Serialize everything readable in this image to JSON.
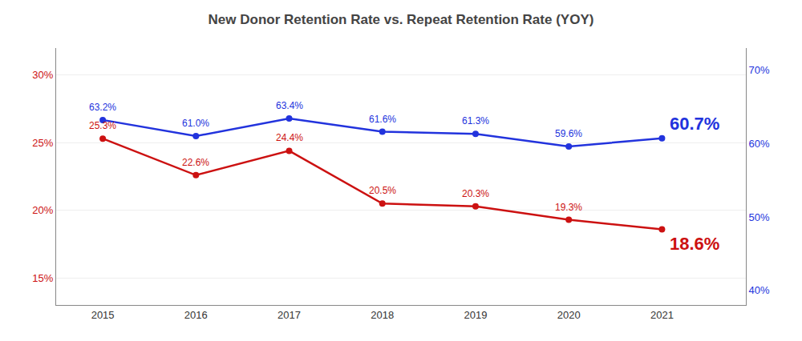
{
  "chart_data": {
    "type": "line",
    "title": "New Donor Retention Rate vs. Repeat Retention Rate (YOY)",
    "x": [
      2015,
      2016,
      2017,
      2018,
      2019,
      2020,
      2021
    ],
    "xlim": [
      2014.5,
      2021.9
    ],
    "xticks": [
      2015,
      2016,
      2017,
      2018,
      2019,
      2020,
      2021
    ],
    "series": [
      {
        "color": "#CC1111",
        "marker": "circle",
        "line_style": "solid",
        "values": [
          25.3,
          22.6,
          24.4,
          20.5,
          20.3,
          19.3,
          18.6
        ],
        "value_labels": [
          "25.3%",
          "22.6%",
          "24.4%",
          "20.5%",
          "20.3%",
          "19.3%",
          "18.6%"
        ]
      },
      {
        "color": "#2233DD",
        "marker": "circle",
        "line_style": "solid",
        "axis": "y2",
        "values": [
          63.2,
          61.0,
          63.4,
          61.6,
          61.3,
          59.6,
          60.7
        ],
        "value_labels": [
          "63.2%",
          "61.0%",
          "63.4%",
          "61.6%",
          "61.3%",
          "59.6%",
          "60.7%"
        ]
      }
    ],
    "ylim": [
      13,
      32
    ],
    "yticks": [
      {
        "value": 15,
        "label": "15%"
      },
      {
        "value": 20,
        "label": "20%"
      },
      {
        "value": 25,
        "label": "25%"
      },
      {
        "value": 30,
        "label": "30%"
      }
    ],
    "y2lim": [
      38,
      73
    ],
    "y2ticks": [
      {
        "value": 40,
        "label": "40%"
      },
      {
        "value": 50,
        "label": "50%"
      },
      {
        "value": 60,
        "label": "60%"
      },
      {
        "value": 70,
        "label": "70%"
      }
    ],
    "grid": true,
    "data_labels": true
  }
}
